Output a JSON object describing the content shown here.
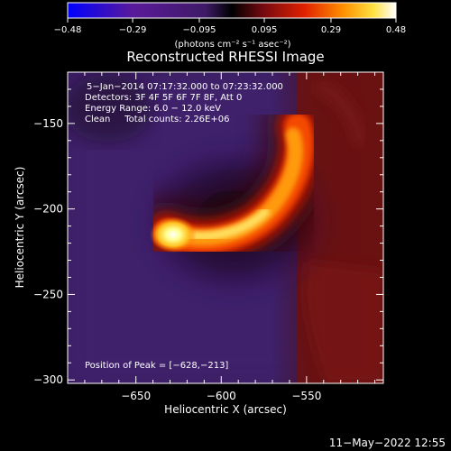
{
  "chart_data": {
    "type": "heatmap",
    "title": "Reconstructed RHESSI Image",
    "xlabel": "Heliocentric X (arcsec)",
    "ylabel": "Heliocentric Y (arcsec)",
    "xlim": [
      -690,
      -505
    ],
    "ylim": [
      -302,
      -120
    ],
    "x_ticks": [
      -650,
      -600,
      -550
    ],
    "y_ticks": [
      -150,
      -200,
      -250,
      -300
    ],
    "x_tick_labels": [
      "−650",
      "−600",
      "−550"
    ],
    "y_tick_labels": [
      "−150",
      "−200",
      "−250",
      "−300"
    ],
    "colorbar": {
      "min": -0.48,
      "max": 0.48,
      "tick_values": [
        -0.48,
        -0.29,
        -0.095,
        0.095,
        0.29,
        0.48
      ],
      "tick_labels": [
        "−0.48",
        "−0.29",
        "−0.095",
        "0.095",
        "0.29",
        "0.48"
      ],
      "unit_label": "(photons cm⁻² s⁻¹ asec⁻²)"
    },
    "annotations": [
      "5−Jan−2014 07:17:32.000 to 07:23:32.000",
      "Detectors: 3F 4F 5F 6F 7F 8F, Att 0",
      "Energy Range: 6.0 − 12.0 keV",
      "Clean     Total counts: 2.26E+06"
    ],
    "peak_label": "Position of Peak = [−628,−213]",
    "peak": [
      -628,
      -213
    ],
    "grid": false
  },
  "footer": {
    "date": "11−May−2022 12:55"
  }
}
